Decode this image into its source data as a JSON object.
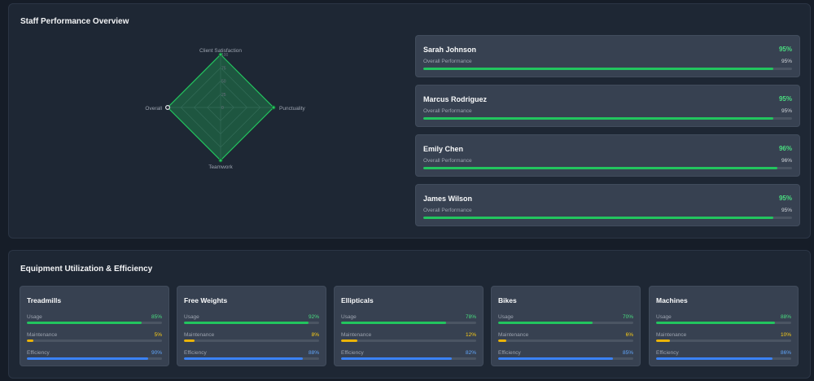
{
  "staff_overview": {
    "title": "Staff Performance Overview",
    "radar": {
      "axes": [
        "Client Satisfaction",
        "Punctuality",
        "Teamwork",
        "Overall"
      ],
      "ticks": [
        "100",
        "75",
        "50",
        "25",
        "0"
      ],
      "max": 100,
      "values": [
        100,
        100,
        100,
        100
      ]
    },
    "staff": [
      {
        "name": "Sarah Johnson",
        "percent": "95%",
        "metric_label": "Overall Performance",
        "metric_value": "95%",
        "value": 95
      },
      {
        "name": "Marcus Rodriguez",
        "percent": "95%",
        "metric_label": "Overall Performance",
        "metric_value": "95%",
        "value": 95
      },
      {
        "name": "Emily Chen",
        "percent": "96%",
        "metric_label": "Overall Performance",
        "metric_value": "96%",
        "value": 96
      },
      {
        "name": "James Wilson",
        "percent": "95%",
        "metric_label": "Overall Performance",
        "metric_value": "95%",
        "value": 95
      }
    ]
  },
  "equipment": {
    "title": "Equipment Utilization & Efficiency",
    "items": [
      {
        "name": "Treadmills",
        "usage_label": "Usage",
        "usage": "85%",
        "usage_value": 85,
        "maintenance_label": "Maintenance",
        "maintenance": "5%",
        "maintenance_value": 5,
        "efficiency_label": "Efficiency",
        "efficiency": "90%",
        "efficiency_value": 90
      },
      {
        "name": "Free Weights",
        "usage_label": "Usage",
        "usage": "92%",
        "usage_value": 92,
        "maintenance_label": "Maintenance",
        "maintenance": "8%",
        "maintenance_value": 8,
        "efficiency_label": "Efficiency",
        "efficiency": "88%",
        "efficiency_value": 88
      },
      {
        "name": "Ellipticals",
        "usage_label": "Usage",
        "usage": "78%",
        "usage_value": 78,
        "maintenance_label": "Maintenance",
        "maintenance": "12%",
        "maintenance_value": 12,
        "efficiency_label": "Efficiency",
        "efficiency": "82%",
        "efficiency_value": 82
      },
      {
        "name": "Bikes",
        "usage_label": "Usage",
        "usage": "70%",
        "usage_value": 70,
        "maintenance_label": "Maintenance",
        "maintenance": "6%",
        "maintenance_value": 6,
        "efficiency_label": "Efficiency",
        "efficiency": "85%",
        "efficiency_value": 85
      },
      {
        "name": "Machines",
        "usage_label": "Usage",
        "usage": "88%",
        "usage_value": 88,
        "maintenance_label": "Maintenance",
        "maintenance": "10%",
        "maintenance_value": 10,
        "efficiency_label": "Efficiency",
        "efficiency": "86%",
        "efficiency_value": 86
      }
    ]
  },
  "colors": {
    "accent_green": "#22c55e",
    "accent_yellow": "#eab308",
    "accent_blue": "#3b82f6",
    "panel_bg": "#1e2734",
    "card_bg": "#374151"
  }
}
